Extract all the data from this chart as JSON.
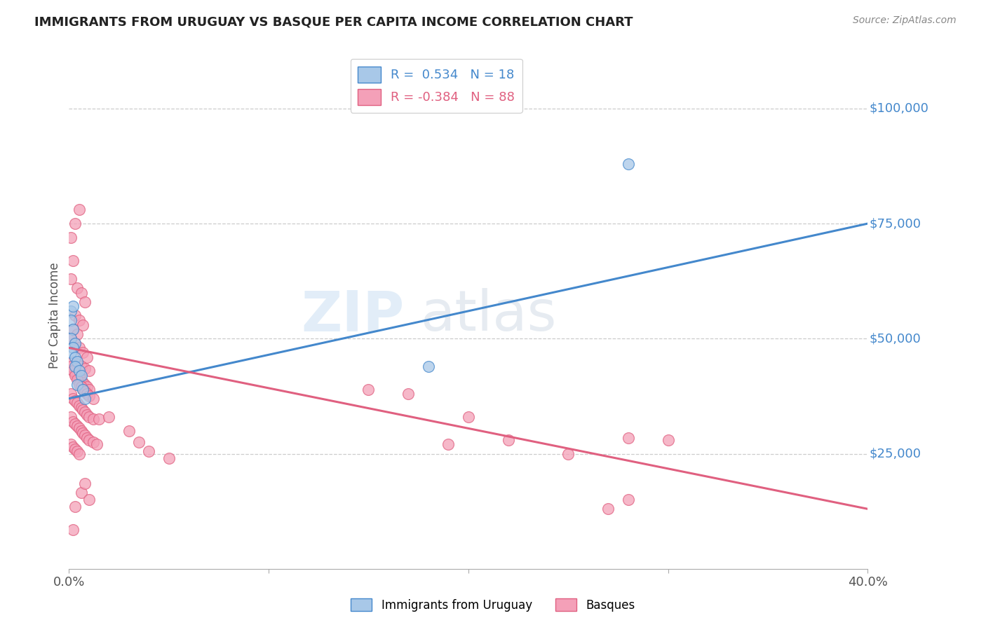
{
  "title": "IMMIGRANTS FROM URUGUAY VS BASQUE PER CAPITA INCOME CORRELATION CHART",
  "source": "Source: ZipAtlas.com",
  "ylabel": "Per Capita Income",
  "ytick_labels": [
    "$25,000",
    "$50,000",
    "$75,000",
    "$100,000"
  ],
  "ytick_values": [
    25000,
    50000,
    75000,
    100000
  ],
  "ymin": 0,
  "ymax": 110000,
  "xmin": 0.0,
  "xmax": 0.4,
  "watermark_zip": "ZIP",
  "watermark_atlas": "atlas",
  "color_blue_fill": "#a8c8e8",
  "color_pink_fill": "#f4a0b8",
  "line_color_blue": "#4488cc",
  "line_color_pink": "#e06080",
  "tick_color": "#4488cc",
  "uruguay_scatter": [
    [
      0.001,
      56000
    ],
    [
      0.002,
      57000
    ],
    [
      0.001,
      54000
    ],
    [
      0.002,
      52000
    ],
    [
      0.001,
      50000
    ],
    [
      0.003,
      49000
    ],
    [
      0.002,
      48000
    ],
    [
      0.001,
      47000
    ],
    [
      0.003,
      46000
    ],
    [
      0.004,
      45000
    ],
    [
      0.003,
      44000
    ],
    [
      0.005,
      43000
    ],
    [
      0.006,
      42000
    ],
    [
      0.004,
      40000
    ],
    [
      0.007,
      39000
    ],
    [
      0.008,
      37000
    ],
    [
      0.28,
      88000
    ],
    [
      0.18,
      44000
    ]
  ],
  "basque_scatter": [
    [
      0.001,
      72000
    ],
    [
      0.003,
      75000
    ],
    [
      0.005,
      78000
    ],
    [
      0.002,
      67000
    ],
    [
      0.001,
      63000
    ],
    [
      0.004,
      61000
    ],
    [
      0.006,
      60000
    ],
    [
      0.008,
      58000
    ],
    [
      0.003,
      55000
    ],
    [
      0.005,
      54000
    ],
    [
      0.007,
      53000
    ],
    [
      0.002,
      52000
    ],
    [
      0.004,
      51000
    ],
    [
      0.001,
      50000
    ],
    [
      0.003,
      49000
    ],
    [
      0.005,
      48000
    ],
    [
      0.007,
      47000
    ],
    [
      0.009,
      46000
    ],
    [
      0.002,
      45000
    ],
    [
      0.004,
      44500
    ],
    [
      0.006,
      44000
    ],
    [
      0.008,
      43500
    ],
    [
      0.01,
      43000
    ],
    [
      0.002,
      43000
    ],
    [
      0.003,
      42500
    ],
    [
      0.004,
      42000
    ],
    [
      0.005,
      41500
    ],
    [
      0.006,
      41000
    ],
    [
      0.007,
      40500
    ],
    [
      0.008,
      40000
    ],
    [
      0.009,
      39500
    ],
    [
      0.01,
      39000
    ],
    [
      0.001,
      44000
    ],
    [
      0.002,
      43000
    ],
    [
      0.003,
      42000
    ],
    [
      0.004,
      41000
    ],
    [
      0.005,
      40000
    ],
    [
      0.006,
      39500
    ],
    [
      0.007,
      39000
    ],
    [
      0.008,
      38500
    ],
    [
      0.009,
      38000
    ],
    [
      0.01,
      37500
    ],
    [
      0.012,
      37000
    ],
    [
      0.001,
      38000
    ],
    [
      0.002,
      37000
    ],
    [
      0.003,
      36500
    ],
    [
      0.004,
      36000
    ],
    [
      0.005,
      35500
    ],
    [
      0.006,
      35000
    ],
    [
      0.007,
      34500
    ],
    [
      0.008,
      34000
    ],
    [
      0.009,
      33500
    ],
    [
      0.01,
      33000
    ],
    [
      0.012,
      32500
    ],
    [
      0.001,
      33000
    ],
    [
      0.002,
      32000
    ],
    [
      0.003,
      31500
    ],
    [
      0.004,
      31000
    ],
    [
      0.005,
      30500
    ],
    [
      0.006,
      30000
    ],
    [
      0.007,
      29500
    ],
    [
      0.008,
      29000
    ],
    [
      0.009,
      28500
    ],
    [
      0.01,
      28000
    ],
    [
      0.012,
      27500
    ],
    [
      0.014,
      27000
    ],
    [
      0.001,
      27000
    ],
    [
      0.002,
      26500
    ],
    [
      0.003,
      26000
    ],
    [
      0.004,
      25500
    ],
    [
      0.005,
      25000
    ],
    [
      0.006,
      16500
    ],
    [
      0.008,
      18500
    ],
    [
      0.01,
      15000
    ],
    [
      0.003,
      13500
    ],
    [
      0.002,
      8500
    ],
    [
      0.05,
      24000
    ],
    [
      0.04,
      25500
    ],
    [
      0.035,
      27500
    ],
    [
      0.03,
      30000
    ],
    [
      0.015,
      32500
    ],
    [
      0.02,
      33000
    ],
    [
      0.17,
      38000
    ],
    [
      0.15,
      39000
    ],
    [
      0.2,
      33000
    ],
    [
      0.22,
      28000
    ],
    [
      0.19,
      27000
    ],
    [
      0.27,
      13000
    ],
    [
      0.28,
      15000
    ],
    [
      0.3,
      28000
    ],
    [
      0.28,
      28500
    ],
    [
      0.25,
      25000
    ]
  ],
  "blue_line_x": [
    0.0,
    0.4
  ],
  "blue_line_y": [
    37000,
    75000
  ],
  "pink_line_x": [
    0.0,
    0.4
  ],
  "pink_line_y": [
    48000,
    13000
  ]
}
